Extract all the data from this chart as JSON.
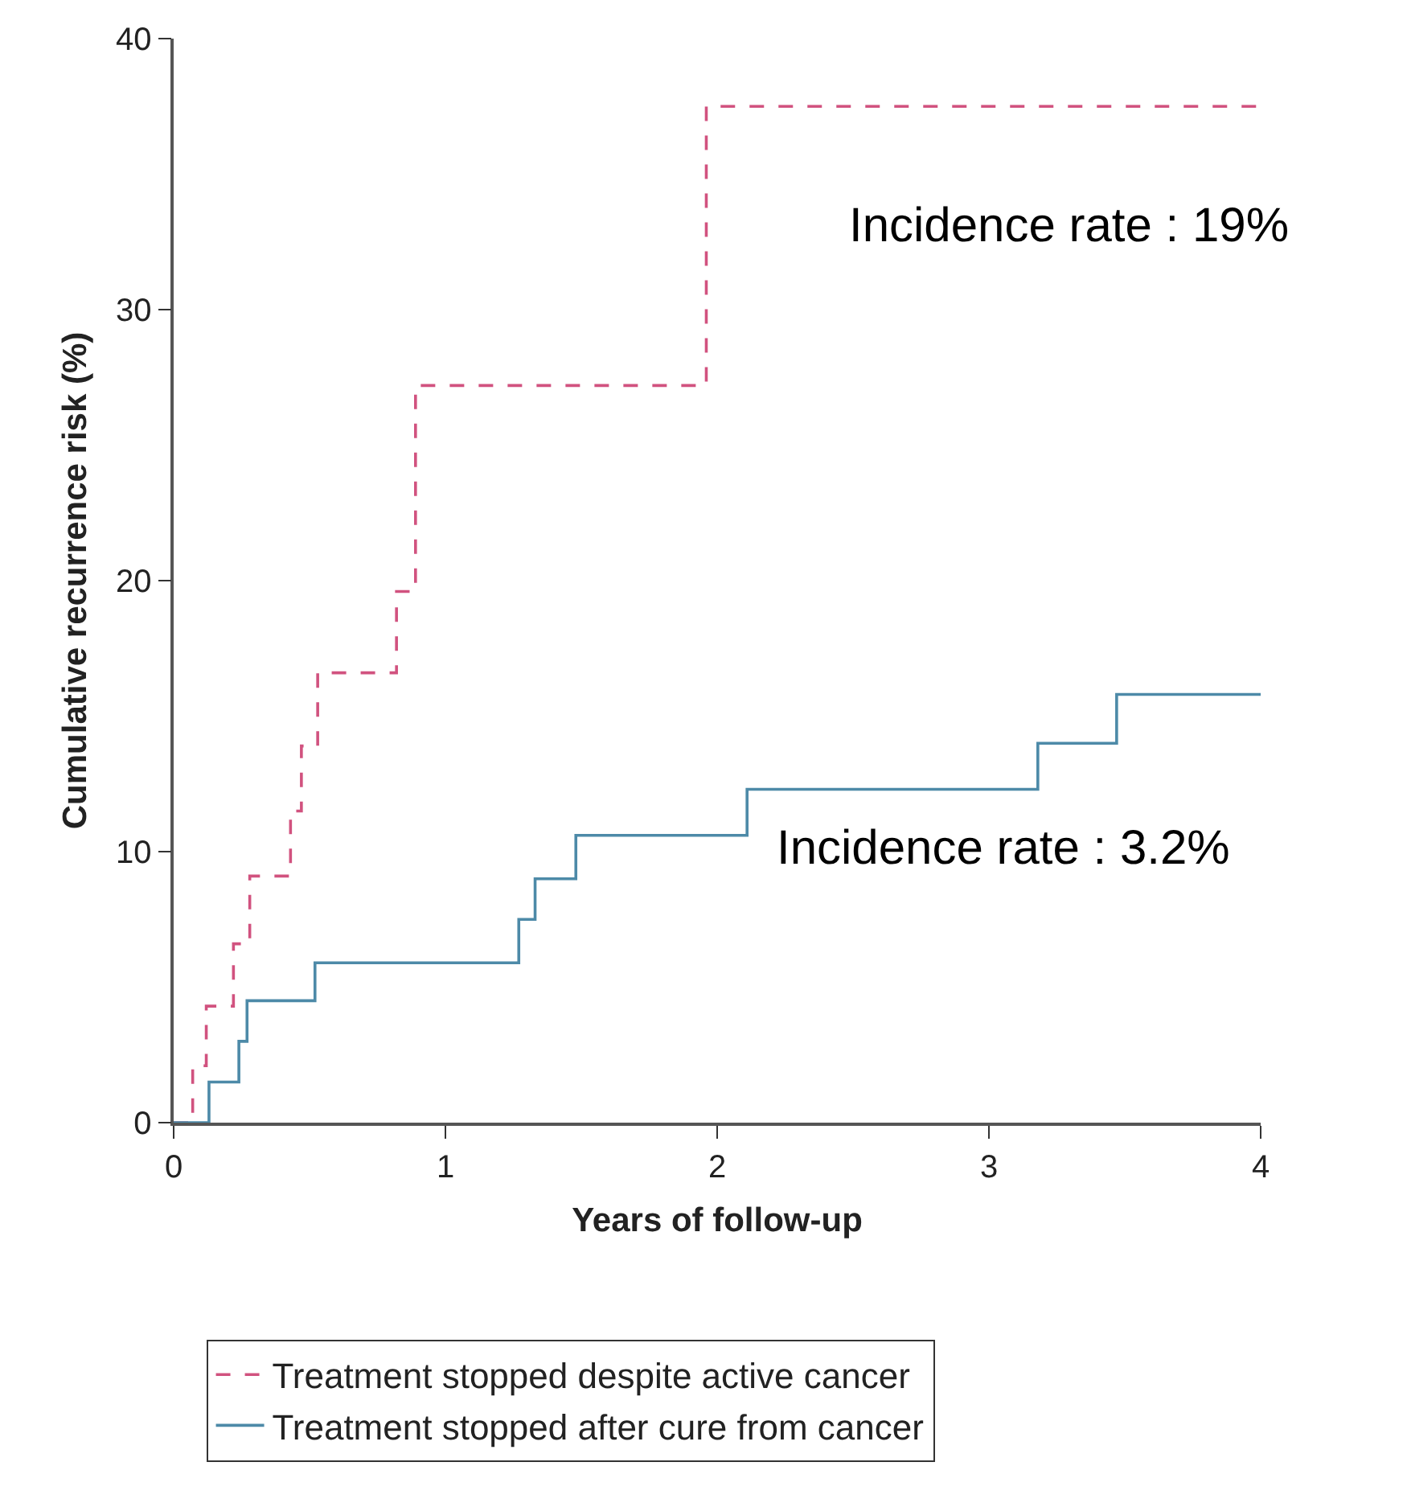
{
  "chart_data": {
    "type": "step",
    "xlabel": "Years of follow-up",
    "ylabel": "Cumulative recurrence risk (%)",
    "xlim": [
      0,
      4
    ],
    "ylim": [
      0,
      40
    ],
    "xticks": [
      0,
      1,
      2,
      3,
      4
    ],
    "yticks": [
      0,
      10,
      20,
      30,
      40
    ],
    "legend": "bottom",
    "series": [
      {
        "name": "Treatment stopped despite active cancer",
        "color": "#d1527f",
        "line_style": "dashed",
        "x": [
          0,
          0.07,
          0.12,
          0.22,
          0.28,
          0.43,
          0.47,
          0.53,
          0.82,
          0.89,
          1.96,
          4
        ],
        "values": [
          0,
          2.1,
          4.3,
          6.6,
          9.1,
          11.5,
          13.9,
          16.6,
          19.6,
          27.2,
          37.5,
          37.5
        ]
      },
      {
        "name": "Treatment stopped after cure from cancer",
        "color": "#4d8aa8",
        "line_style": "solid",
        "x": [
          0,
          0.13,
          0.24,
          0.27,
          0.52,
          1.27,
          1.33,
          1.48,
          2.11,
          3.18,
          3.47,
          4
        ],
        "values": [
          0,
          1.5,
          3.0,
          4.5,
          5.9,
          7.5,
          9.0,
          10.6,
          12.3,
          14.0,
          15.8,
          15.8
        ]
      }
    ],
    "annotations": [
      "Incidence rate : 19%",
      "Incidence rate : 3.2%"
    ]
  }
}
